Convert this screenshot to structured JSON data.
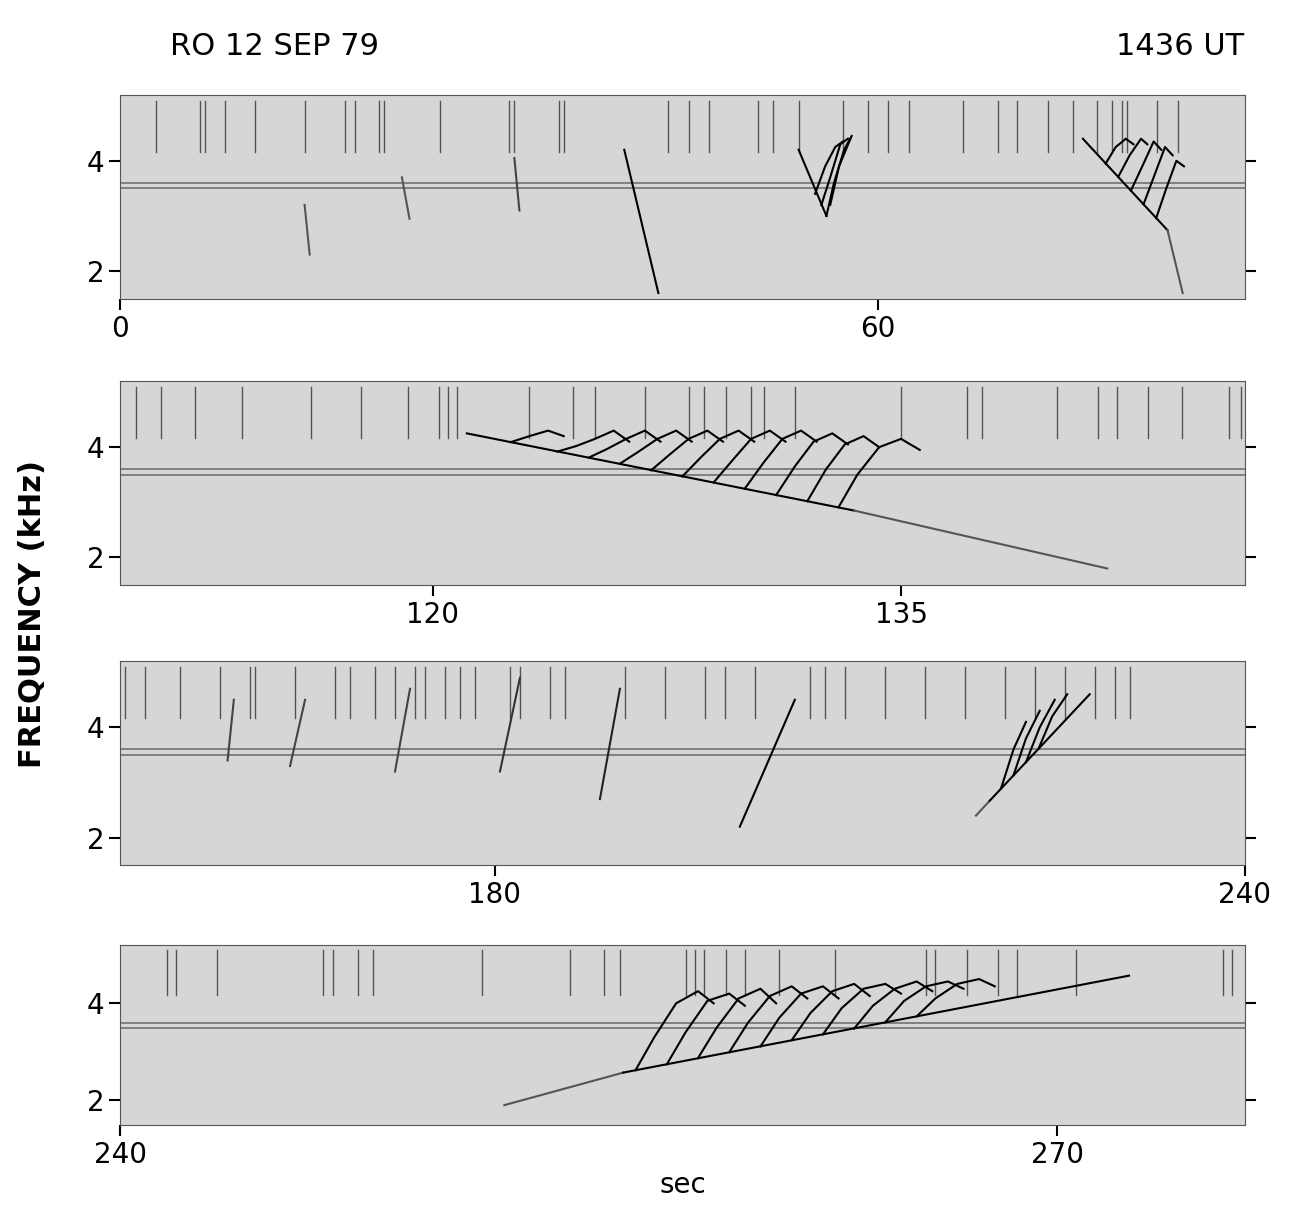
{
  "title": "RO 12 SEP 79",
  "subtitle": "1436 UT",
  "ylabel": "FREQUENCY (kHz)",
  "chart_data": [
    {
      "type": "line",
      "xlim": [
        0,
        89
      ],
      "ylim": [
        1.5,
        5.2
      ],
      "xticks": [
        0,
        60
      ],
      "yticks": [
        2,
        4
      ],
      "bands": [
        3.6,
        3.5
      ],
      "spherics": [
        2.8,
        6.3,
        6.7,
        8.3,
        10.7,
        14.6,
        17.8,
        18.6,
        20.5,
        20.9,
        25.3,
        30.8,
        31.2,
        34.7,
        35.1,
        43.4,
        45.0,
        46.6,
        50.5,
        51.7,
        53.7,
        57.2,
        59.2,
        60.8,
        62.4,
        66.7,
        69.5,
        71.0,
        73.4,
        75.4,
        77.3,
        78.5,
        79.3,
        79.7,
        82.1,
        83.7
      ],
      "series": [
        {
          "color": "#555555",
          "x": [
            14.6,
            15.0
          ],
          "values": [
            3.2,
            2.3
          ]
        },
        {
          "color": "#555555",
          "x": [
            22.3,
            22.9
          ],
          "values": [
            3.7,
            2.95
          ]
        },
        {
          "color": "#444444",
          "x": [
            31.2,
            31.6
          ],
          "values": [
            4.05,
            3.1
          ]
        },
        {
          "color": "#000000",
          "x": [
            39.9,
            42.6
          ],
          "values": [
            4.2,
            1.6
          ]
        },
        {
          "color": "#000000",
          "x": [
            53.7,
            55.9
          ],
          "values": [
            4.2,
            3.0
          ]
        },
        {
          "color": "#000000",
          "x": [
            55.0,
            55.8,
            56.6,
            57.2
          ],
          "values": [
            3.4,
            3.9,
            4.25,
            4.35
          ]
        },
        {
          "color": "#000000",
          "x": [
            55.5,
            56.2,
            57.0,
            57.6
          ],
          "values": [
            3.2,
            3.7,
            4.3,
            4.4
          ]
        },
        {
          "color": "#000000",
          "x": [
            55.9,
            56.5,
            57.3,
            57.9
          ],
          "values": [
            3.0,
            3.6,
            4.2,
            4.45
          ]
        },
        {
          "color": "#000000",
          "x": [
            56.2,
            56.9,
            57.8
          ],
          "values": [
            3.2,
            3.9,
            4.4
          ]
        },
        {
          "color": "#000000",
          "x": [
            76.2,
            82.9
          ],
          "values": [
            4.4,
            2.74
          ]
        },
        {
          "color": "#555555",
          "x": [
            82.9,
            84.1
          ],
          "values": [
            2.74,
            1.6
          ]
        },
        {
          "color": "#000000",
          "x": [
            78.0,
            78.8,
            79.6,
            80.2
          ],
          "values": [
            3.95,
            4.25,
            4.4,
            4.3
          ]
        },
        {
          "color": "#000000",
          "x": [
            79.0,
            79.9,
            80.8,
            81.3
          ],
          "values": [
            3.71,
            4.1,
            4.4,
            4.3
          ]
        },
        {
          "color": "#000000",
          "x": [
            80.0,
            80.9,
            81.8,
            82.4
          ],
          "values": [
            3.46,
            3.9,
            4.35,
            4.2
          ]
        },
        {
          "color": "#000000",
          "x": [
            81.0,
            81.8,
            82.7,
            83.3
          ],
          "values": [
            3.21,
            3.7,
            4.25,
            4.1
          ]
        },
        {
          "color": "#000000",
          "x": [
            82.0,
            82.8,
            83.6,
            84.2
          ],
          "values": [
            2.96,
            3.5,
            4.0,
            3.9
          ]
        }
      ]
    },
    {
      "type": "line",
      "xlim": [
        110,
        146
      ],
      "ylim": [
        1.5,
        5.2
      ],
      "xticks": [
        120,
        135
      ],
      "yticks": [
        2,
        4
      ],
      "bands": [
        3.6,
        3.5
      ],
      "spherics": [
        110.5,
        111.3,
        112.4,
        113.9,
        116.1,
        117.7,
        119.2,
        120.2,
        120.5,
        120.8,
        123.1,
        124.5,
        125.2,
        126.8,
        128.2,
        128.7,
        129.4,
        130.2,
        130.6,
        131.6,
        135.0,
        137.1,
        137.6,
        140.0,
        141.3,
        141.9,
        142.9,
        144.0,
        145.5,
        145.9
      ],
      "series": [
        {
          "color": "#000000",
          "x": [
            121.1,
            133.5
          ],
          "values": [
            4.25,
            2.85
          ]
        },
        {
          "color": "#555555",
          "x": [
            133.5,
            141.6
          ],
          "values": [
            2.85,
            1.8
          ]
        },
        {
          "color": "#000000",
          "x": [
            122.5,
            123.1,
            123.7,
            124.2
          ],
          "values": [
            4.09,
            4.2,
            4.3,
            4.2
          ]
        },
        {
          "color": "#000000",
          "x": [
            124.0,
            124.6,
            125.2,
            125.8,
            126.3
          ],
          "values": [
            3.92,
            4.02,
            4.15,
            4.3,
            4.1
          ]
        },
        {
          "color": "#000000",
          "x": [
            125.0,
            125.6,
            126.2,
            126.8,
            127.3
          ],
          "values": [
            3.81,
            3.97,
            4.15,
            4.3,
            4.1
          ]
        },
        {
          "color": "#000000",
          "x": [
            126.0,
            126.6,
            127.2,
            127.8,
            128.3
          ],
          "values": [
            3.7,
            3.92,
            4.15,
            4.3,
            4.1
          ]
        },
        {
          "color": "#000000",
          "x": [
            127.0,
            127.6,
            128.2,
            128.8,
            129.3
          ],
          "values": [
            3.58,
            3.87,
            4.15,
            4.3,
            4.1
          ]
        },
        {
          "color": "#000000",
          "x": [
            128.0,
            128.6,
            129.2,
            129.8,
            130.3
          ],
          "values": [
            3.47,
            3.82,
            4.15,
            4.3,
            4.1
          ]
        },
        {
          "color": "#000000",
          "x": [
            129.0,
            129.6,
            130.2,
            130.8,
            131.3
          ],
          "values": [
            3.36,
            3.76,
            4.15,
            4.3,
            4.1
          ]
        },
        {
          "color": "#000000",
          "x": [
            130.0,
            130.6,
            131.2,
            131.8,
            132.3
          ],
          "values": [
            3.25,
            3.72,
            4.15,
            4.3,
            4.1
          ]
        },
        {
          "color": "#000000",
          "x": [
            131.0,
            131.6,
            132.2,
            132.8,
            133.3
          ],
          "values": [
            3.13,
            3.65,
            4.1,
            4.25,
            4.05
          ]
        },
        {
          "color": "#000000",
          "x": [
            132.0,
            132.6,
            133.2,
            133.8,
            134.3
          ],
          "values": [
            3.02,
            3.6,
            4.05,
            4.2,
            4.0
          ]
        },
        {
          "color": "#000000",
          "x": [
            133.0,
            133.6,
            134.3,
            135.0,
            135.6
          ],
          "values": [
            2.91,
            3.5,
            4.0,
            4.15,
            3.95
          ]
        }
      ]
    },
    {
      "type": "line",
      "xlim": [
        150,
        240
      ],
      "ylim": [
        1.5,
        5.2
      ],
      "xticks": [
        180,
        240
      ],
      "yticks": [
        2,
        4
      ],
      "bands": [
        3.6,
        3.5
      ],
      "spherics": [
        150.4,
        152.0,
        154.8,
        158.0,
        160.4,
        160.8,
        164.0,
        167.2,
        168.4,
        170.4,
        172.0,
        173.6,
        174.4,
        176.0,
        177.2,
        178.4,
        181.2,
        182.0,
        184.4,
        185.6,
        190.4,
        193.6,
        196.8,
        198.4,
        200.8,
        205.2,
        206.4,
        208.0,
        211.2,
        214.4,
        217.6,
        220.8,
        223.2,
        225.6,
        228.0,
        229.6,
        230.8
      ],
      "series": [
        {
          "color": "#444444",
          "x": [
            158.6,
            159.1
          ],
          "values": [
            3.4,
            4.5
          ]
        },
        {
          "color": "#444444",
          "x": [
            163.6,
            164.8
          ],
          "values": [
            3.3,
            4.5
          ]
        },
        {
          "color": "#444444",
          "x": [
            172.0,
            173.2
          ],
          "values": [
            3.2,
            4.7
          ]
        },
        {
          "color": "#333333",
          "x": [
            180.4,
            182.0
          ],
          "values": [
            3.2,
            4.9
          ]
        },
        {
          "color": "#222222",
          "x": [
            188.4,
            190.0
          ],
          "values": [
            2.7,
            4.7
          ]
        },
        {
          "color": "#000000",
          "x": [
            199.6,
            204.0
          ],
          "values": [
            2.2,
            4.5
          ]
        },
        {
          "color": "#555555",
          "x": [
            218.5,
            219.6
          ],
          "values": [
            2.4,
            2.67
          ]
        },
        {
          "color": "#000000",
          "x": [
            219.6,
            227.6
          ],
          "values": [
            2.67,
            4.6
          ]
        },
        {
          "color": "#000000",
          "x": [
            220.5,
            221.5,
            222.5
          ],
          "values": [
            2.89,
            3.6,
            4.1
          ]
        },
        {
          "color": "#000000",
          "x": [
            221.5,
            222.5,
            223.6
          ],
          "values": [
            3.13,
            3.8,
            4.3
          ]
        },
        {
          "color": "#000000",
          "x": [
            222.5,
            223.6,
            224.8
          ],
          "values": [
            3.37,
            4.0,
            4.5
          ]
        },
        {
          "color": "#000000",
          "x": [
            223.5,
            224.6,
            225.8
          ],
          "values": [
            3.61,
            4.2,
            4.6
          ]
        }
      ]
    },
    {
      "type": "line",
      "xlim": [
        240,
        276
      ],
      "ylim": [
        1.5,
        5.2
      ],
      "xticks": [
        240,
        270
      ],
      "yticks": [
        2,
        4
      ],
      "xlabel": "sec",
      "bands": [
        3.6,
        3.5
      ],
      "spherics": [
        241.5,
        241.8,
        243.1,
        246.5,
        246.8,
        247.6,
        248.1,
        251.6,
        254.4,
        255.5,
        256.0,
        258.1,
        258.4,
        258.7,
        259.4,
        260.0,
        261.1,
        262.9,
        265.8,
        266.1,
        267.1,
        268.1,
        268.7,
        270.6,
        275.3,
        275.6
      ],
      "series": [
        {
          "color": "#555555",
          "x": [
            252.3,
            256.1
          ],
          "values": [
            1.9,
            2.57
          ]
        },
        {
          "color": "#000000",
          "x": [
            256.1,
            272.3
          ],
          "values": [
            2.57,
            4.57
          ]
        },
        {
          "color": "#000000",
          "x": [
            256.5,
            257.1,
            257.8,
            258.5,
            259.0
          ],
          "values": [
            2.62,
            3.3,
            4.0,
            4.25,
            4.0
          ]
        },
        {
          "color": "#000000",
          "x": [
            257.5,
            258.1,
            258.8,
            259.5,
            260.0
          ],
          "values": [
            2.74,
            3.4,
            4.05,
            4.2,
            3.95
          ]
        },
        {
          "color": "#000000",
          "x": [
            258.5,
            259.1,
            259.8,
            260.5,
            261.0
          ],
          "values": [
            2.87,
            3.5,
            4.1,
            4.3,
            4.0
          ]
        },
        {
          "color": "#000000",
          "x": [
            259.5,
            260.1,
            260.8,
            261.5,
            262.0
          ],
          "values": [
            2.99,
            3.6,
            4.15,
            4.35,
            4.1
          ]
        },
        {
          "color": "#000000",
          "x": [
            260.5,
            261.1,
            261.8,
            262.5,
            263.0
          ],
          "values": [
            3.11,
            3.7,
            4.2,
            4.35,
            4.1
          ]
        },
        {
          "color": "#000000",
          "x": [
            261.5,
            262.1,
            262.8,
            263.5,
            264.0
          ],
          "values": [
            3.24,
            3.8,
            4.25,
            4.4,
            4.15
          ]
        },
        {
          "color": "#000000",
          "x": [
            262.5,
            263.1,
            263.8,
            264.5,
            265.0
          ],
          "values": [
            3.36,
            3.9,
            4.3,
            4.4,
            4.2
          ]
        },
        {
          "color": "#000000",
          "x": [
            263.5,
            264.1,
            264.8,
            265.5,
            266.0
          ],
          "values": [
            3.48,
            3.95,
            4.3,
            4.45,
            4.25
          ]
        },
        {
          "color": "#000000",
          "x": [
            264.5,
            265.1,
            265.8,
            266.5,
            267.0
          ],
          "values": [
            3.61,
            4.05,
            4.35,
            4.45,
            4.3
          ]
        },
        {
          "color": "#000000",
          "x": [
            265.5,
            266.1,
            266.8,
            267.5,
            268.0
          ],
          "values": [
            3.73,
            4.1,
            4.4,
            4.5,
            4.35
          ]
        }
      ]
    }
  ]
}
